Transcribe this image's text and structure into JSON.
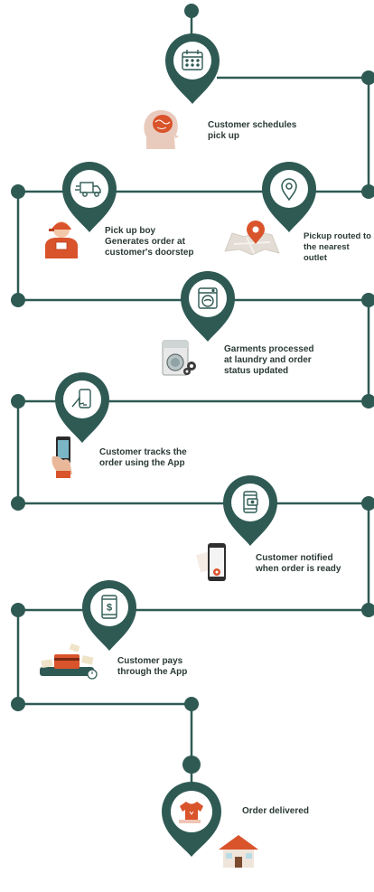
{
  "colors": {
    "primary": "#2f5a54",
    "accent": "#d9532b",
    "line": "#2f5a54",
    "text": "#2b3a37"
  },
  "steps": [
    {
      "id": "schedule",
      "label": "Customer schedules\npick up",
      "pin_icon": "calendar-icon",
      "illus_icon": "brain-head-icon"
    },
    {
      "id": "pickup-boy",
      "label": "Pick up boy\nGenerates order at\ncustomer's doorstep",
      "pin_icon": "delivery-truck-icon",
      "illus_icon": "delivery-man-icon"
    },
    {
      "id": "routed",
      "label": "Pickup routed to\nthe nearest outlet",
      "pin_icon": "location-pin-icon",
      "illus_icon": "map-pin-icon"
    },
    {
      "id": "processed",
      "label": "Garments processed\nat laundry and order\nstatus updated",
      "pin_icon": "washing-machine-icon",
      "illus_icon": "washer-gears-icon"
    },
    {
      "id": "tracks",
      "label": "Customer tracks the\norder using the App",
      "pin_icon": "hand-phone-icon",
      "illus_icon": "phone-in-hand-icon"
    },
    {
      "id": "notified",
      "label": "Customer notified\nwhen order is ready",
      "pin_icon": "phone-notification-icon",
      "illus_icon": "phone-alert-icon"
    },
    {
      "id": "pays",
      "label": "Customer pays\nthrough the App",
      "pin_icon": "phone-dollar-icon",
      "illus_icon": "payment-card-icon"
    },
    {
      "id": "delivered",
      "label": "Order delivered",
      "pin_icon": "tshirt-icon",
      "illus_icon": "house-icon"
    }
  ]
}
